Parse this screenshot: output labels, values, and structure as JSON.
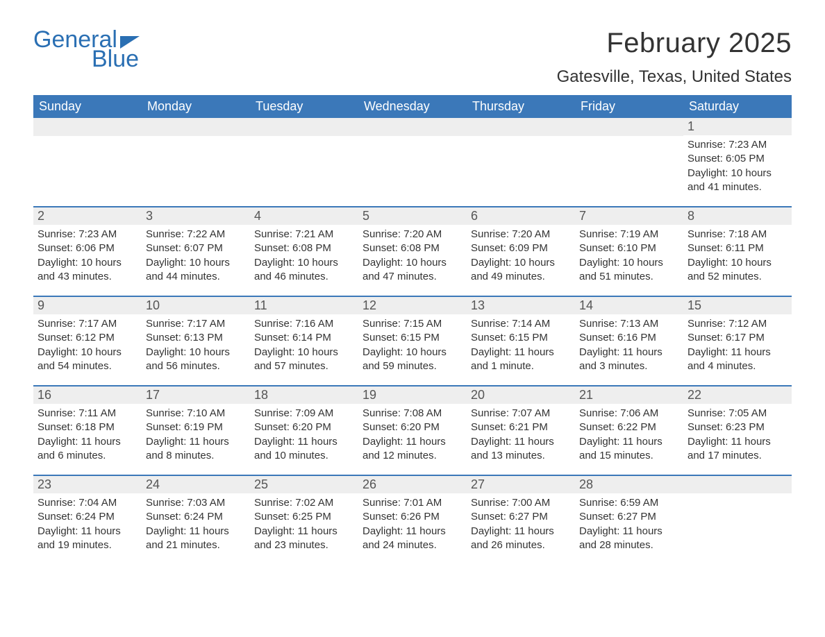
{
  "logo": {
    "text1": "General",
    "text2": "Blue"
  },
  "title": "February 2025",
  "location": "Gatesville, Texas, United States",
  "colors": {
    "header_bg": "#3b78b9",
    "header_text": "#ffffff",
    "dayhead_bg": "#eeeeee",
    "text": "#333333",
    "logo": "#2a6fb3"
  },
  "weekday_labels": [
    "Sunday",
    "Monday",
    "Tuesday",
    "Wednesday",
    "Thursday",
    "Friday",
    "Saturday"
  ],
  "grid": {
    "columns": 7,
    "rows": 5,
    "start_weekday_index": 6,
    "days_in_month": 28
  },
  "days": {
    "1": {
      "sunrise": "7:23 AM",
      "sunset": "6:05 PM",
      "daylight": "10 hours and 41 minutes."
    },
    "2": {
      "sunrise": "7:23 AM",
      "sunset": "6:06 PM",
      "daylight": "10 hours and 43 minutes."
    },
    "3": {
      "sunrise": "7:22 AM",
      "sunset": "6:07 PM",
      "daylight": "10 hours and 44 minutes."
    },
    "4": {
      "sunrise": "7:21 AM",
      "sunset": "6:08 PM",
      "daylight": "10 hours and 46 minutes."
    },
    "5": {
      "sunrise": "7:20 AM",
      "sunset": "6:08 PM",
      "daylight": "10 hours and 47 minutes."
    },
    "6": {
      "sunrise": "7:20 AM",
      "sunset": "6:09 PM",
      "daylight": "10 hours and 49 minutes."
    },
    "7": {
      "sunrise": "7:19 AM",
      "sunset": "6:10 PM",
      "daylight": "10 hours and 51 minutes."
    },
    "8": {
      "sunrise": "7:18 AM",
      "sunset": "6:11 PM",
      "daylight": "10 hours and 52 minutes."
    },
    "9": {
      "sunrise": "7:17 AM",
      "sunset": "6:12 PM",
      "daylight": "10 hours and 54 minutes."
    },
    "10": {
      "sunrise": "7:17 AM",
      "sunset": "6:13 PM",
      "daylight": "10 hours and 56 minutes."
    },
    "11": {
      "sunrise": "7:16 AM",
      "sunset": "6:14 PM",
      "daylight": "10 hours and 57 minutes."
    },
    "12": {
      "sunrise": "7:15 AM",
      "sunset": "6:15 PM",
      "daylight": "10 hours and 59 minutes."
    },
    "13": {
      "sunrise": "7:14 AM",
      "sunset": "6:15 PM",
      "daylight": "11 hours and 1 minute."
    },
    "14": {
      "sunrise": "7:13 AM",
      "sunset": "6:16 PM",
      "daylight": "11 hours and 3 minutes."
    },
    "15": {
      "sunrise": "7:12 AM",
      "sunset": "6:17 PM",
      "daylight": "11 hours and 4 minutes."
    },
    "16": {
      "sunrise": "7:11 AM",
      "sunset": "6:18 PM",
      "daylight": "11 hours and 6 minutes."
    },
    "17": {
      "sunrise": "7:10 AM",
      "sunset": "6:19 PM",
      "daylight": "11 hours and 8 minutes."
    },
    "18": {
      "sunrise": "7:09 AM",
      "sunset": "6:20 PM",
      "daylight": "11 hours and 10 minutes."
    },
    "19": {
      "sunrise": "7:08 AM",
      "sunset": "6:20 PM",
      "daylight": "11 hours and 12 minutes."
    },
    "20": {
      "sunrise": "7:07 AM",
      "sunset": "6:21 PM",
      "daylight": "11 hours and 13 minutes."
    },
    "21": {
      "sunrise": "7:06 AM",
      "sunset": "6:22 PM",
      "daylight": "11 hours and 15 minutes."
    },
    "22": {
      "sunrise": "7:05 AM",
      "sunset": "6:23 PM",
      "daylight": "11 hours and 17 minutes."
    },
    "23": {
      "sunrise": "7:04 AM",
      "sunset": "6:24 PM",
      "daylight": "11 hours and 19 minutes."
    },
    "24": {
      "sunrise": "7:03 AM",
      "sunset": "6:24 PM",
      "daylight": "11 hours and 21 minutes."
    },
    "25": {
      "sunrise": "7:02 AM",
      "sunset": "6:25 PM",
      "daylight": "11 hours and 23 minutes."
    },
    "26": {
      "sunrise": "7:01 AM",
      "sunset": "6:26 PM",
      "daylight": "11 hours and 24 minutes."
    },
    "27": {
      "sunrise": "7:00 AM",
      "sunset": "6:27 PM",
      "daylight": "11 hours and 26 minutes."
    },
    "28": {
      "sunrise": "6:59 AM",
      "sunset": "6:27 PM",
      "daylight": "11 hours and 28 minutes."
    }
  },
  "labels": {
    "sunrise": "Sunrise:",
    "sunset": "Sunset:",
    "daylight": "Daylight:"
  },
  "typography": {
    "title_fontsize": 40,
    "location_fontsize": 24,
    "header_fontsize": 18,
    "daynum_fontsize": 18,
    "body_fontsize": 15
  }
}
